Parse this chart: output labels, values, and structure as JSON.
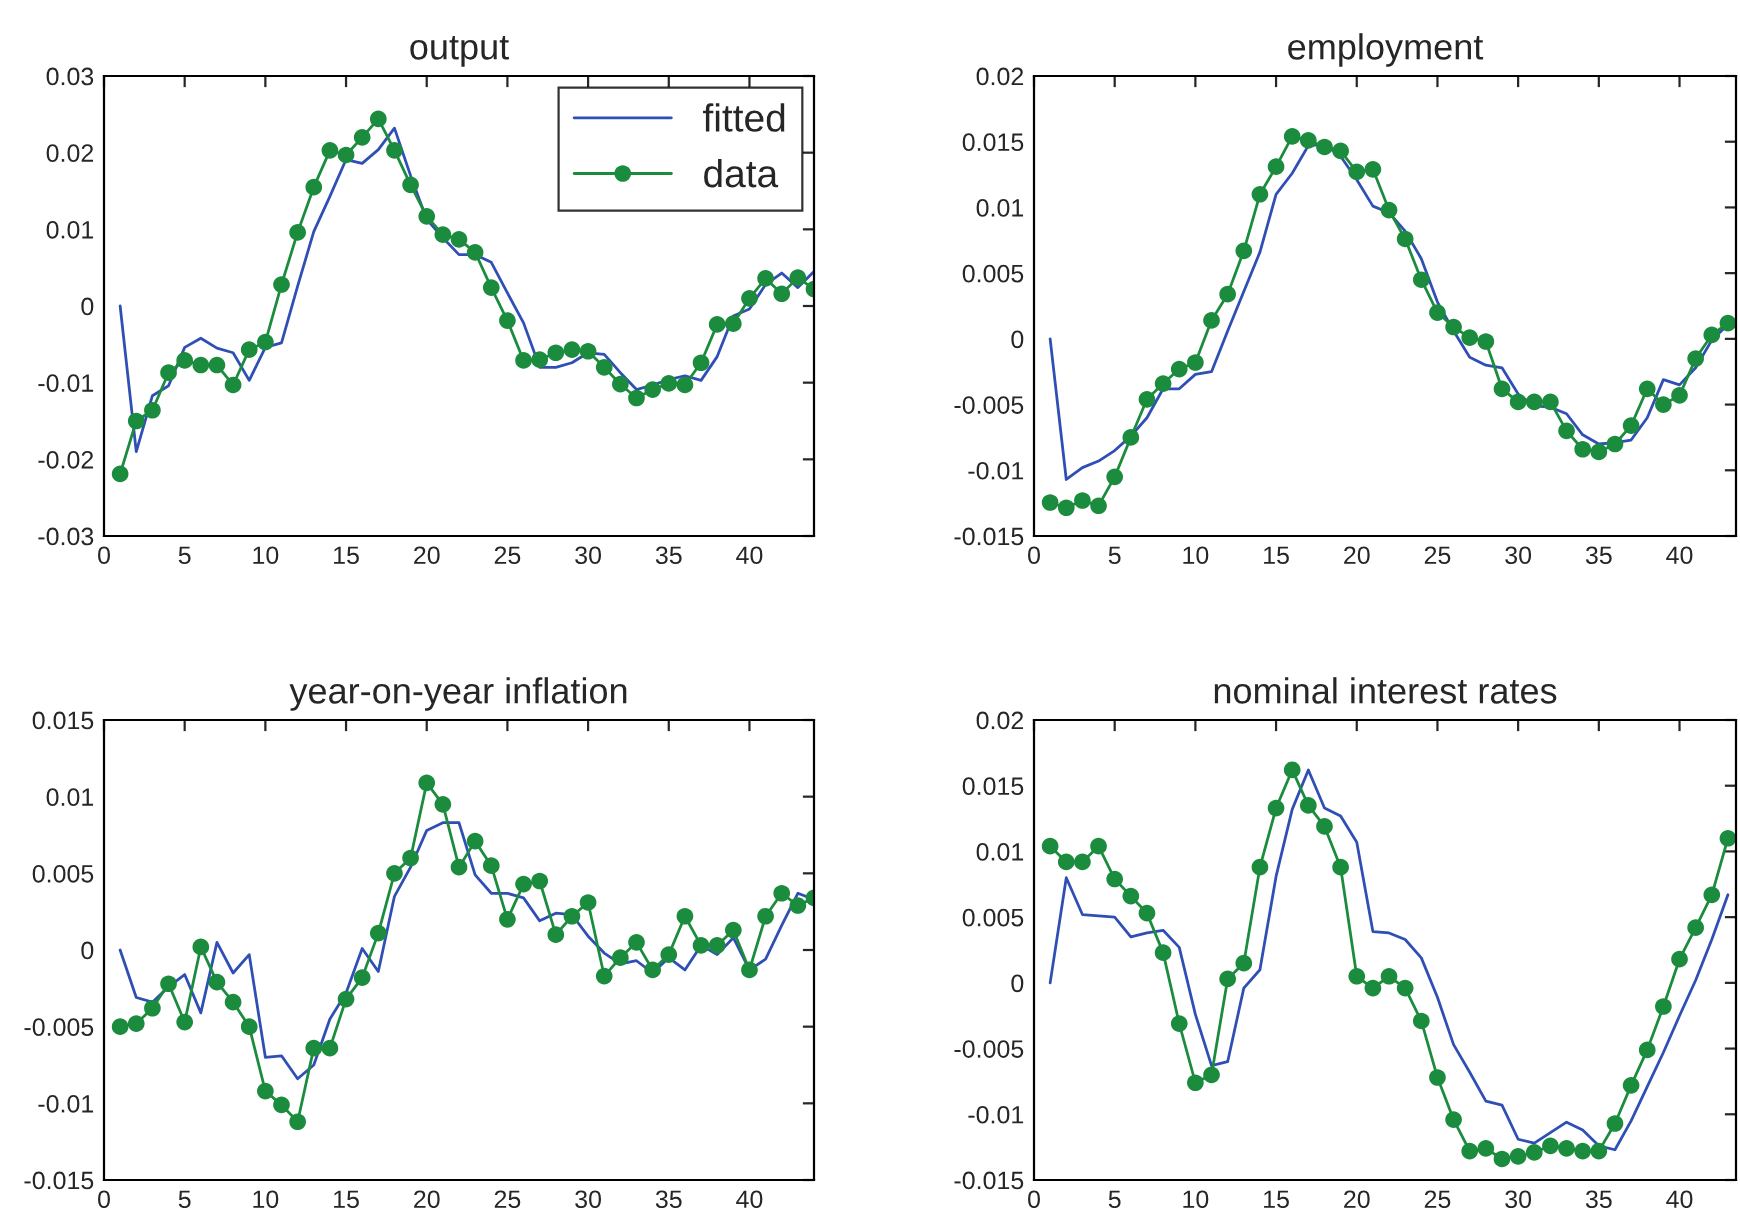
{
  "chart_data": [
    {
      "type": "line",
      "title": "output",
      "xlim": [
        0,
        44
      ],
      "xticks": [
        0,
        5,
        10,
        15,
        20,
        25,
        30,
        35,
        40
      ],
      "ylim": [
        -0.03,
        0.03
      ],
      "yticks": [
        -0.03,
        -0.02,
        -0.01,
        0,
        0.01,
        0.02,
        0.03
      ],
      "grid": false,
      "legend": "top right",
      "x": [
        1,
        2,
        3,
        4,
        5,
        6,
        7,
        8,
        9,
        10,
        11,
        12,
        13,
        14,
        15,
        16,
        17,
        18,
        19,
        20,
        21,
        22,
        23,
        24,
        25,
        26,
        27,
        28,
        29,
        30,
        31,
        32,
        33,
        34,
        35,
        36,
        37,
        38,
        39,
        40,
        41,
        42,
        43,
        44
      ],
      "series": [
        {
          "name": "fitted",
          "color": "#2f4fb5",
          "marker": "none",
          "values": [
            0,
            -0.019,
            -0.0117,
            -0.0104,
            -0.0054,
            -0.0042,
            -0.0055,
            -0.0061,
            -0.0097,
            -0.0054,
            -0.0048,
            0.0026,
            0.0097,
            0.0143,
            0.0191,
            0.0186,
            0.0204,
            0.0232,
            0.017,
            0.0113,
            0.0089,
            0.0067,
            0.0067,
            0.0057,
            0.0017,
            -0.0022,
            -0.008,
            -0.008,
            -0.0074,
            -0.0061,
            -0.0063,
            -0.0087,
            -0.0109,
            -0.0103,
            -0.0096,
            -0.0091,
            -0.0097,
            -0.0066,
            -0.0013,
            -0.0004,
            0.0028,
            0.0043,
            0.0024,
            0.0045
          ]
        },
        {
          "name": "data",
          "color": "#1b8c3e",
          "marker": "circle",
          "values": [
            -0.0219,
            -0.015,
            -0.0136,
            -0.0087,
            -0.0071,
            -0.0077,
            -0.0077,
            -0.0103,
            -0.0057,
            -0.0047,
            0.0028,
            0.0096,
            0.0155,
            0.0203,
            0.0197,
            0.022,
            0.0244,
            0.0203,
            0.0158,
            0.0117,
            0.0093,
            0.0087,
            0.007,
            0.0024,
            -0.0019,
            -0.0071,
            -0.007,
            -0.0061,
            -0.0057,
            -0.0059,
            -0.008,
            -0.0102,
            -0.012,
            -0.0109,
            -0.0101,
            -0.0103,
            -0.0074,
            -0.0024,
            -0.0023,
            0.001,
            0.0036,
            0.0016,
            0.0037,
            0.0022
          ]
        }
      ]
    },
    {
      "type": "line",
      "title": "employment",
      "xlim": [
        0,
        43.5
      ],
      "xticks": [
        0,
        5,
        10,
        15,
        20,
        25,
        30,
        35,
        40
      ],
      "ylim": [
        -0.015,
        0.02
      ],
      "yticks": [
        -0.015,
        -0.01,
        -0.005,
        0,
        0.005,
        0.01,
        0.015,
        0.02
      ],
      "grid": false,
      "legend": false,
      "x": [
        1,
        2,
        3,
        4,
        5,
        6,
        7,
        8,
        9,
        10,
        11,
        12,
        13,
        14,
        15,
        16,
        17,
        18,
        19,
        20,
        21,
        22,
        23,
        24,
        25,
        26,
        27,
        28,
        29,
        30,
        31,
        32,
        33,
        34,
        35,
        36,
        37,
        38,
        39,
        40,
        41,
        42,
        43
      ],
      "series": [
        {
          "color": "#2f4fb5",
          "marker": "none",
          "values": [
            0,
            -0.0107,
            -0.0098,
            -0.0093,
            -0.0085,
            -0.0074,
            -0.006,
            -0.0038,
            -0.0038,
            -0.0027,
            -0.0025,
            0.0006,
            0.0036,
            0.0066,
            0.011,
            0.0126,
            0.0147,
            0.0148,
            0.0139,
            0.0121,
            0.0101,
            0.0096,
            0.0082,
            0.0061,
            0.0028,
            0.0006,
            -0.0014,
            -0.002,
            -0.0022,
            -0.0042,
            -0.0051,
            -0.0052,
            -0.0057,
            -0.0073,
            -0.008,
            -0.0079,
            -0.0077,
            -0.006,
            -0.0031,
            -0.0035,
            -0.0022,
            -0.0001,
            0.0011
          ]
        },
        {
          "color": "#1b8c3e",
          "marker": "circle",
          "values": [
            -0.01245,
            -0.01285,
            -0.0123,
            -0.0127,
            -0.0105,
            -0.0075,
            -0.0046,
            -0.0034,
            -0.0023,
            -0.0018,
            0.0014,
            0.0034,
            0.0067,
            0.011,
            0.0131,
            0.0154,
            0.0151,
            0.0146,
            0.0143,
            0.0127,
            0.0129,
            0.0098,
            0.0076,
            0.0045,
            0.002,
            0.0009,
            0.0001,
            -0.0002,
            -0.0038,
            -0.0048,
            -0.0048,
            -0.0048,
            -0.007,
            -0.0084,
            -0.0086,
            -0.008,
            -0.0066,
            -0.0038,
            -0.005,
            -0.0043,
            -0.0015,
            0.0003,
            0.0012
          ]
        }
      ]
    },
    {
      "type": "line",
      "title": "year-on-year inflation",
      "xlim": [
        0,
        44
      ],
      "xticks": [
        0,
        5,
        10,
        15,
        20,
        25,
        30,
        35,
        40
      ],
      "ylim": [
        -0.015,
        0.015
      ],
      "yticks": [
        -0.015,
        -0.01,
        -0.005,
        0,
        0.005,
        0.01,
        0.015
      ],
      "grid": false,
      "legend": false,
      "x": [
        1,
        2,
        3,
        4,
        5,
        6,
        7,
        8,
        9,
        10,
        11,
        12,
        13,
        14,
        15,
        16,
        17,
        18,
        19,
        20,
        21,
        22,
        23,
        24,
        25,
        26,
        27,
        28,
        29,
        30,
        31,
        32,
        33,
        34,
        35,
        36,
        37,
        38,
        39,
        40,
        41,
        42,
        43,
        44
      ],
      "series": [
        {
          "color": "#2f4fb5",
          "marker": "none",
          "values": [
            0,
            -0.0031,
            -0.0034,
            -0.0024,
            -0.0016,
            -0.0041,
            0.0005,
            -0.0015,
            -0.0003,
            -0.007,
            -0.0069,
            -0.0084,
            -0.0075,
            -0.0045,
            -0.0028,
            0.0001,
            -0.0014,
            0.0035,
            0.0054,
            0.0078,
            0.0083,
            0.0083,
            0.0049,
            0.0037,
            0.0037,
            0.0034,
            0.0019,
            0.0024,
            0.0023,
            0.0009,
            -0.0002,
            -0.0009,
            -0.0007,
            -0.0015,
            -0.0005,
            -0.0013,
            0.0003,
            -0.0003,
            0.0008,
            -0.0013,
            -0.0006,
            0.0016,
            0.0037,
            0.0033
          ]
        },
        {
          "color": "#1b8c3e",
          "marker": "circle",
          "values": [
            -0.005,
            -0.0048,
            -0.0038,
            -0.0022,
            -0.0047,
            0.0002,
            -0.0021,
            -0.0034,
            -0.005,
            -0.0092,
            -0.0101,
            -0.0112,
            -0.0064,
            -0.0064,
            -0.0032,
            -0.0018,
            0.0011,
            0.005,
            0.006,
            0.0109,
            0.0095,
            0.0054,
            0.0071,
            0.0055,
            0.002,
            0.0043,
            0.0045,
            0.001,
            0.0022,
            0.0031,
            -0.0017,
            -0.0005,
            0.0005,
            -0.0013,
            -0.0003,
            0.0022,
            0.0003,
            0.0003,
            0.0013,
            -0.0013,
            0.0022,
            0.0037,
            0.0029,
            0.0034
          ]
        }
      ]
    },
    {
      "type": "line",
      "title": "nominal interest rates",
      "xlim": [
        0,
        43.5
      ],
      "xticks": [
        0,
        5,
        10,
        15,
        20,
        25,
        30,
        35,
        40
      ],
      "ylim": [
        -0.015,
        0.02
      ],
      "yticks": [
        -0.015,
        -0.01,
        -0.005,
        0,
        0.005,
        0.01,
        0.015,
        0.02
      ],
      "grid": false,
      "legend": false,
      "x": [
        1,
        2,
        3,
        4,
        5,
        6,
        7,
        8,
        9,
        10,
        11,
        12,
        13,
        14,
        15,
        16,
        17,
        18,
        19,
        20,
        21,
        22,
        23,
        24,
        25,
        26,
        27,
        28,
        29,
        30,
        31,
        32,
        33,
        34,
        35,
        36,
        37,
        38,
        39,
        40,
        41,
        42,
        43
      ],
      "series": [
        {
          "color": "#2f4fb5",
          "marker": "none",
          "values": [
            0,
            0.008,
            0.0052,
            0.0051,
            0.005,
            0.0035,
            0.0038,
            0.004,
            0.0027,
            -0.0024,
            -0.0063,
            -0.006,
            -0.0004,
            0.001,
            0.0081,
            0.0132,
            0.0162,
            0.0133,
            0.0127,
            0.0107,
            0.0039,
            0.0038,
            0.0033,
            0.0019,
            -0.0011,
            -0.0047,
            -0.0068,
            -0.009,
            -0.0093,
            -0.0119,
            -0.0122,
            -0.0114,
            -0.0106,
            -0.0112,
            -0.0124,
            -0.0127,
            -0.0105,
            -0.0079,
            -0.0053,
            -0.0025,
            0.0002,
            0.0033,
            0.0067
          ]
        },
        {
          "color": "#1b8c3e",
          "marker": "circle",
          "values": [
            0.0104,
            0.0092,
            0.0092,
            0.0104,
            0.0079,
            0.0066,
            0.0053,
            0.0023,
            -0.0031,
            -0.0076,
            -0.007,
            0.0003,
            0.0015,
            0.0088,
            0.0133,
            0.0162,
            0.0135,
            0.0119,
            0.0088,
            0.0005,
            -0.0004,
            0.0005,
            -0.0004,
            -0.0029,
            -0.0072,
            -0.0104,
            -0.0128,
            -0.0126,
            -0.0134,
            -0.0132,
            -0.0129,
            -0.0124,
            -0.0126,
            -0.0128,
            -0.0128,
            -0.0107,
            -0.0078,
            -0.0051,
            -0.0018,
            0.0018,
            0.0042,
            0.0067,
            0.011
          ]
        }
      ]
    }
  ]
}
